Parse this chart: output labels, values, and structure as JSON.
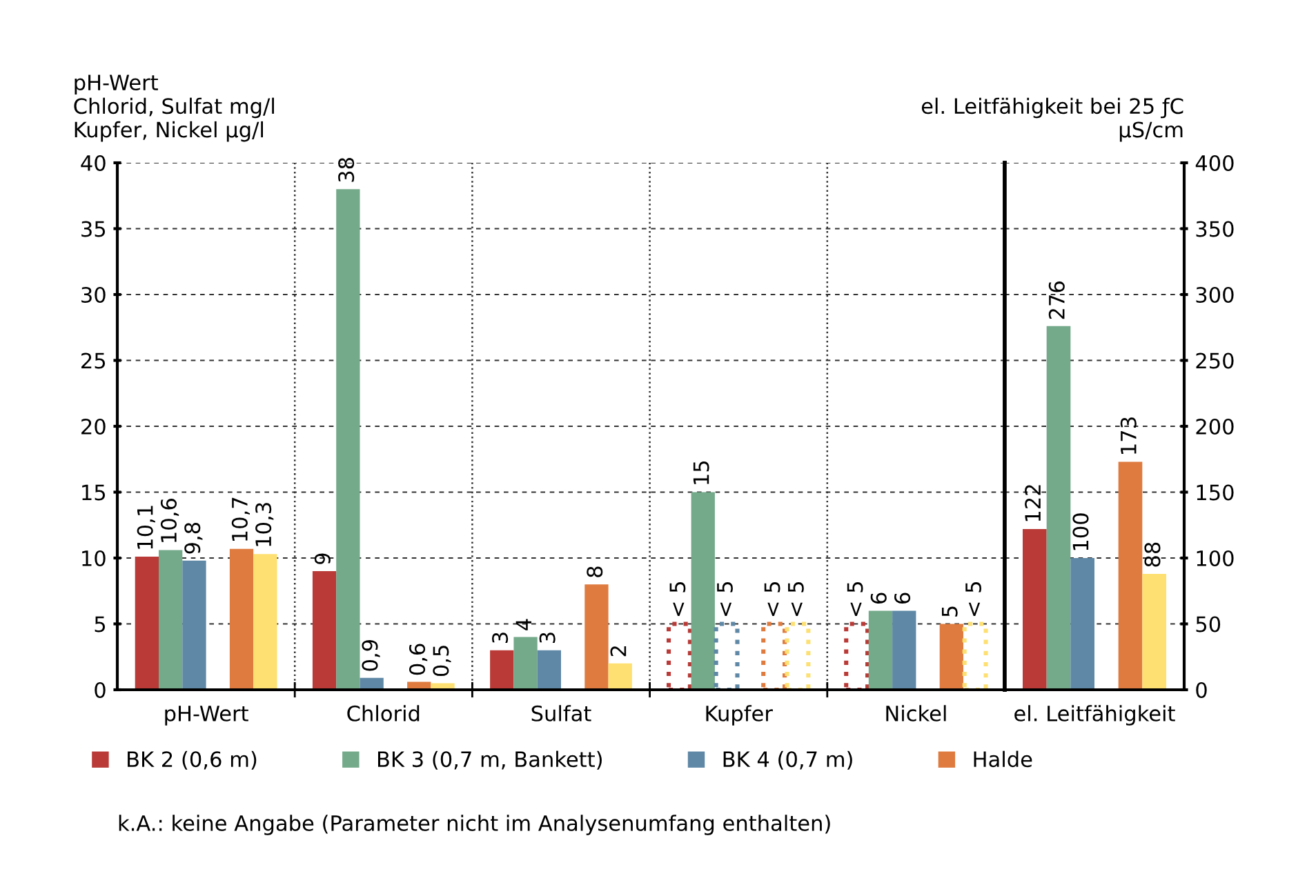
{
  "chart_data": [
    {
      "type": "bar",
      "ylabel": "pH-Wert\nChlorid, Sulfat mg/l\nKupfer, Nickel µg/l",
      "categories": [
        "pH-Wert",
        "Chlorid",
        "Sulfat",
        "Kupfer",
        "Nickel"
      ],
      "ylim": [
        0,
        40
      ],
      "yticks": [
        0,
        5,
        10,
        15,
        20,
        25,
        30,
        35,
        40
      ],
      "grid": true,
      "legend": "bottom",
      "annotations": [
        "k.A.: keine Angabe (Parameter nicht im Analysenumfang enthalten)"
      ],
      "series": [
        {
          "name": "BK 2 (0,6 m)",
          "color": "#b93a37",
          "values": [
            10.1,
            9,
            3,
            null,
            null
          ],
          "value_labels": [
            "10,1",
            "9",
            "3",
            null,
            null
          ]
        },
        {
          "color": "#b93a37",
          "line_style": "dotted",
          "values": [
            null,
            null,
            null,
            5,
            5
          ],
          "value_labels": [
            null,
            null,
            null,
            "< 5",
            "< 5"
          ]
        },
        {
          "name": "BK 3 (0,7 m, Bankett)",
          "color": "#74a98a",
          "values": [
            10.6,
            38,
            4,
            15,
            6
          ],
          "value_labels": [
            "10,6",
            "38",
            "4",
            "15",
            "6"
          ]
        },
        {
          "name": "BK 4 (0,7 m)",
          "color": "#5e88a6",
          "values": [
            9.8,
            0.9,
            3,
            null,
            6
          ],
          "value_labels": [
            "9,8",
            "0,9",
            "3",
            null,
            "6"
          ]
        },
        {
          "color": "#5e88a6",
          "line_style": "dotted",
          "values": [
            null,
            null,
            null,
            5,
            null
          ],
          "value_labels": [
            null,
            null,
            null,
            "< 5",
            null
          ]
        },
        {
          "values": [
            null,
            null,
            null,
            null,
            null
          ]
        },
        {
          "name": "Halde",
          "color": "#df7b3f",
          "values": [
            10.7,
            0.6,
            8,
            null,
            5
          ],
          "value_labels": [
            "10,7",
            "0,6",
            "8",
            null,
            "5"
          ]
        },
        {
          "color": "#df7b3f",
          "line_style": "dotted",
          "values": [
            null,
            null,
            null,
            5,
            null
          ],
          "value_labels": [
            null,
            null,
            null,
            "< 5",
            null
          ]
        },
        {
          "color": "#fde071",
          "values": [
            10.3,
            0.5,
            2,
            null,
            null
          ],
          "value_labels": [
            "10,3",
            "0,5",
            "2",
            null,
            null
          ]
        },
        {
          "color": "#fde071",
          "line_style": "dotted",
          "values": [
            null,
            null,
            null,
            5,
            5
          ],
          "value_labels": [
            null,
            null,
            null,
            "< 5",
            "< 5"
          ]
        }
      ]
    },
    {
      "type": "bar",
      "y2label": "el. Leitfähigkeit bei 25 ƒC\nµS/cm",
      "categories": [
        "el. Leitfähigkeit"
      ],
      "y2lim": [
        0,
        400
      ],
      "y2ticks": [
        0,
        50,
        100,
        150,
        200,
        250,
        300,
        350,
        400
      ],
      "grid": true,
      "series": [
        {
          "axis": "y2",
          "color": "#b93a37",
          "values": [
            122
          ],
          "value_labels": [
            "122"
          ]
        },
        {
          "axis": "y2",
          "color": "#74a98a",
          "values": [
            276
          ],
          "value_labels": [
            "276"
          ]
        },
        {
          "axis": "y2",
          "color": "#5e88a6",
          "values": [
            100
          ],
          "value_labels": [
            "100"
          ]
        },
        {
          "axis": "y2",
          "values": [
            null
          ]
        },
        {
          "axis": "y2",
          "color": "#df7b3f",
          "values": [
            173
          ],
          "value_labels": [
            "173"
          ]
        },
        {
          "axis": "y2",
          "color": "#fde071",
          "values": [
            88
          ],
          "value_labels": [
            "88"
          ]
        }
      ]
    }
  ]
}
